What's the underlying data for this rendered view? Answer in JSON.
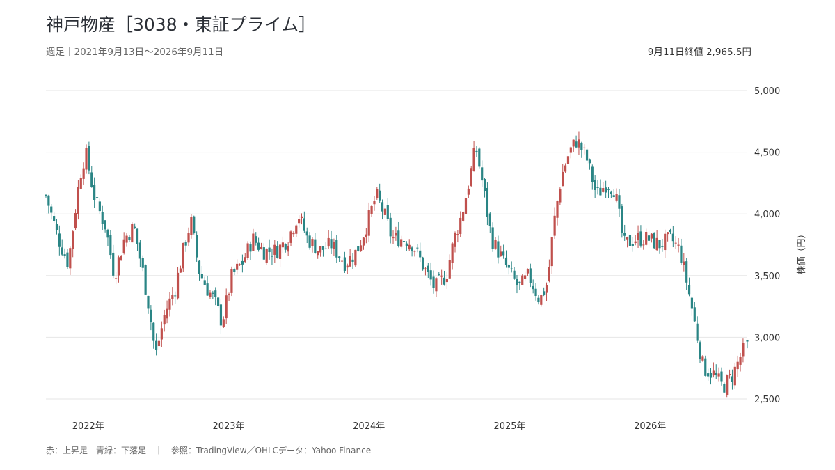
{
  "header": {
    "title": "神戸物産［3038・東証プライム］",
    "subtitle": "週足｜2021年9月13日〜2026年9月11日",
    "close_label": "9月11日終値 2,965.5円"
  },
  "footer": {
    "note": "赤：上昇足　青緑：下落足　｜　参照：TradingView／OHLCデータ：Yahoo Finance"
  },
  "colors": {
    "up": "#c0504d",
    "down": "#2a8585",
    "grid": "#e6e6e6",
    "text": "#333333"
  },
  "chart_data": {
    "type": "candlestick",
    "title": "神戸物産［3038・東証プライム］",
    "interval": "週足",
    "period": "2021年9月13日〜2026年9月11日",
    "ylabel": "株価（円）",
    "ylim": [
      2500,
      5000
    ],
    "yticks": [
      2500,
      3000,
      3500,
      4000,
      4500,
      5000
    ],
    "ytick_labels": [
      "2,500",
      "3,000",
      "3,500",
      "4,000",
      "4,500",
      "5,000"
    ],
    "xlim": [
      "2021-09-13",
      "2026-09-11"
    ],
    "xticks": [
      {
        "date": "2022-01-01",
        "label": "2022年"
      },
      {
        "date": "2023-01-01",
        "label": "2023年"
      },
      {
        "date": "2024-01-01",
        "label": "2024年"
      },
      {
        "date": "2025-01-01",
        "label": "2025年"
      },
      {
        "date": "2026-01-01",
        "label": "2026年"
      }
    ],
    "grid": true,
    "last_close": 2965.5,
    "close_path": [
      [
        "2021-09-13",
        4150
      ],
      [
        "2021-10-15",
        3800
      ],
      [
        "2021-11-10",
        3600
      ],
      [
        "2021-12-10",
        4300
      ],
      [
        "2021-12-25",
        4500
      ],
      [
        "2022-01-20",
        4100
      ],
      [
        "2022-02-15",
        3900
      ],
      [
        "2022-03-10",
        3500
      ],
      [
        "2022-04-05",
        3800
      ],
      [
        "2022-04-30",
        3900
      ],
      [
        "2022-05-25",
        3500
      ],
      [
        "2022-06-10",
        3200
      ],
      [
        "2022-06-25",
        2850
      ],
      [
        "2022-07-20",
        3200
      ],
      [
        "2022-08-15",
        3400
      ],
      [
        "2022-09-05",
        3700
      ],
      [
        "2022-09-25",
        3950
      ],
      [
        "2022-10-15",
        3550
      ],
      [
        "2022-11-05",
        3400
      ],
      [
        "2022-11-25",
        3300
      ],
      [
        "2022-12-15",
        3120
      ],
      [
        "2023-01-10",
        3500
      ],
      [
        "2023-02-05",
        3600
      ],
      [
        "2023-03-05",
        3800
      ],
      [
        "2023-04-01",
        3700
      ],
      [
        "2023-05-05",
        3700
      ],
      [
        "2023-06-05",
        3800
      ],
      [
        "2023-07-01",
        4000
      ],
      [
        "2023-07-25",
        3800
      ],
      [
        "2023-08-25",
        3700
      ],
      [
        "2023-09-25",
        3750
      ],
      [
        "2023-11-01",
        3600
      ],
      [
        "2023-12-01",
        3700
      ],
      [
        "2023-12-25",
        3900
      ],
      [
        "2024-01-20",
        4150
      ],
      [
        "2024-02-10",
        4000
      ],
      [
        "2024-03-01",
        3800
      ],
      [
        "2024-04-01",
        3800
      ],
      [
        "2024-04-25",
        3750
      ],
      [
        "2024-05-25",
        3550
      ],
      [
        "2024-06-20",
        3400
      ],
      [
        "2024-07-20",
        3500
      ],
      [
        "2024-08-10",
        3800
      ],
      [
        "2024-08-30",
        4000
      ],
      [
        "2024-09-20",
        4300
      ],
      [
        "2024-10-05",
        4550
      ],
      [
        "2024-10-25",
        4200
      ],
      [
        "2024-11-15",
        3800
      ],
      [
        "2024-12-10",
        3650
      ],
      [
        "2025-01-05",
        3500
      ],
      [
        "2025-01-25",
        3400
      ],
      [
        "2025-02-20",
        3500
      ],
      [
        "2025-03-20",
        3300
      ],
      [
        "2025-04-10",
        3450
      ],
      [
        "2025-04-25",
        3900
      ],
      [
        "2025-05-15",
        4300
      ],
      [
        "2025-06-05",
        4500
      ],
      [
        "2025-06-25",
        4600
      ],
      [
        "2025-07-20",
        4450
      ],
      [
        "2025-08-15",
        4150
      ],
      [
        "2025-09-10",
        4250
      ],
      [
        "2025-10-01",
        4200
      ],
      [
        "2025-10-25",
        3750
      ],
      [
        "2025-11-25",
        3800
      ],
      [
        "2025-12-25",
        3800
      ],
      [
        "2026-01-25",
        3750
      ],
      [
        "2026-02-25",
        3800
      ],
      [
        "2026-03-20",
        3700
      ],
      [
        "2026-04-10",
        3400
      ],
      [
        "2026-05-01",
        3050
      ],
      [
        "2026-05-20",
        2750
      ],
      [
        "2026-06-15",
        2700
      ],
      [
        "2026-07-10",
        2600
      ],
      [
        "2026-08-05",
        2700
      ],
      [
        "2026-08-25",
        2850
      ],
      [
        "2026-09-11",
        2965.5
      ]
    ]
  }
}
